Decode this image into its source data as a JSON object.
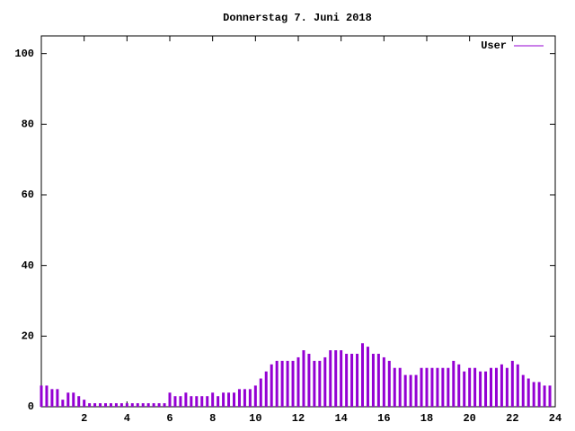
{
  "chart_data": {
    "type": "impulse",
    "title": "Donnerstag 7. Juni 2018",
    "x": [
      0,
      0.25,
      0.5,
      0.75,
      1,
      1.25,
      1.5,
      1.75,
      2,
      2.25,
      2.5,
      2.75,
      3,
      3.25,
      3.5,
      3.75,
      4,
      4.25,
      4.5,
      4.75,
      5,
      5.25,
      5.5,
      5.75,
      6,
      6.25,
      6.5,
      6.75,
      7,
      7.25,
      7.5,
      7.75,
      8,
      8.25,
      8.5,
      8.75,
      9,
      9.25,
      9.5,
      9.75,
      10,
      10.25,
      10.5,
      10.75,
      11,
      11.25,
      11.5,
      11.75,
      12,
      12.25,
      12.5,
      12.75,
      13,
      13.25,
      13.5,
      13.75,
      14,
      14.25,
      14.5,
      14.75,
      15,
      15.25,
      15.5,
      15.75,
      16,
      16.25,
      16.5,
      16.75,
      17,
      17.25,
      17.5,
      17.75,
      18,
      18.25,
      18.5,
      18.75,
      19,
      19.25,
      19.5,
      19.75,
      20,
      20.25,
      20.5,
      20.75,
      21,
      21.25,
      21.5,
      21.75,
      22,
      22.25,
      22.5,
      22.75,
      23,
      23.25,
      23.5,
      23.75
    ],
    "series": [
      {
        "name": "User",
        "color": "#9400d3",
        "values": [
          6,
          6,
          5,
          5,
          2,
          4,
          4,
          3,
          2,
          1,
          1,
          1,
          1,
          1,
          1,
          1,
          1,
          1,
          1,
          1,
          1,
          1,
          1,
          1,
          4,
          3,
          3,
          4,
          3,
          3,
          3,
          3,
          4,
          3,
          4,
          4,
          4,
          5,
          5,
          5,
          6,
          8,
          10,
          12,
          13,
          13,
          13,
          13,
          14,
          16,
          15,
          13,
          13,
          14,
          16,
          16,
          16,
          15,
          15,
          15,
          18,
          17,
          15,
          15,
          14,
          13,
          11,
          11,
          9,
          9,
          9,
          11,
          11,
          11,
          11,
          11,
          11,
          13,
          12,
          10,
          11,
          11,
          10,
          10,
          11,
          11,
          12,
          11,
          13,
          12,
          9,
          8,
          7,
          7,
          6,
          6
        ]
      }
    ],
    "xlim": [
      0,
      24
    ],
    "xticks": [
      2,
      4,
      6,
      8,
      10,
      12,
      14,
      16,
      18,
      20,
      22,
      24
    ],
    "ylim": [
      0,
      105
    ],
    "yticks": [
      0,
      20,
      40,
      60,
      80,
      100
    ],
    "legend": "top-right"
  }
}
